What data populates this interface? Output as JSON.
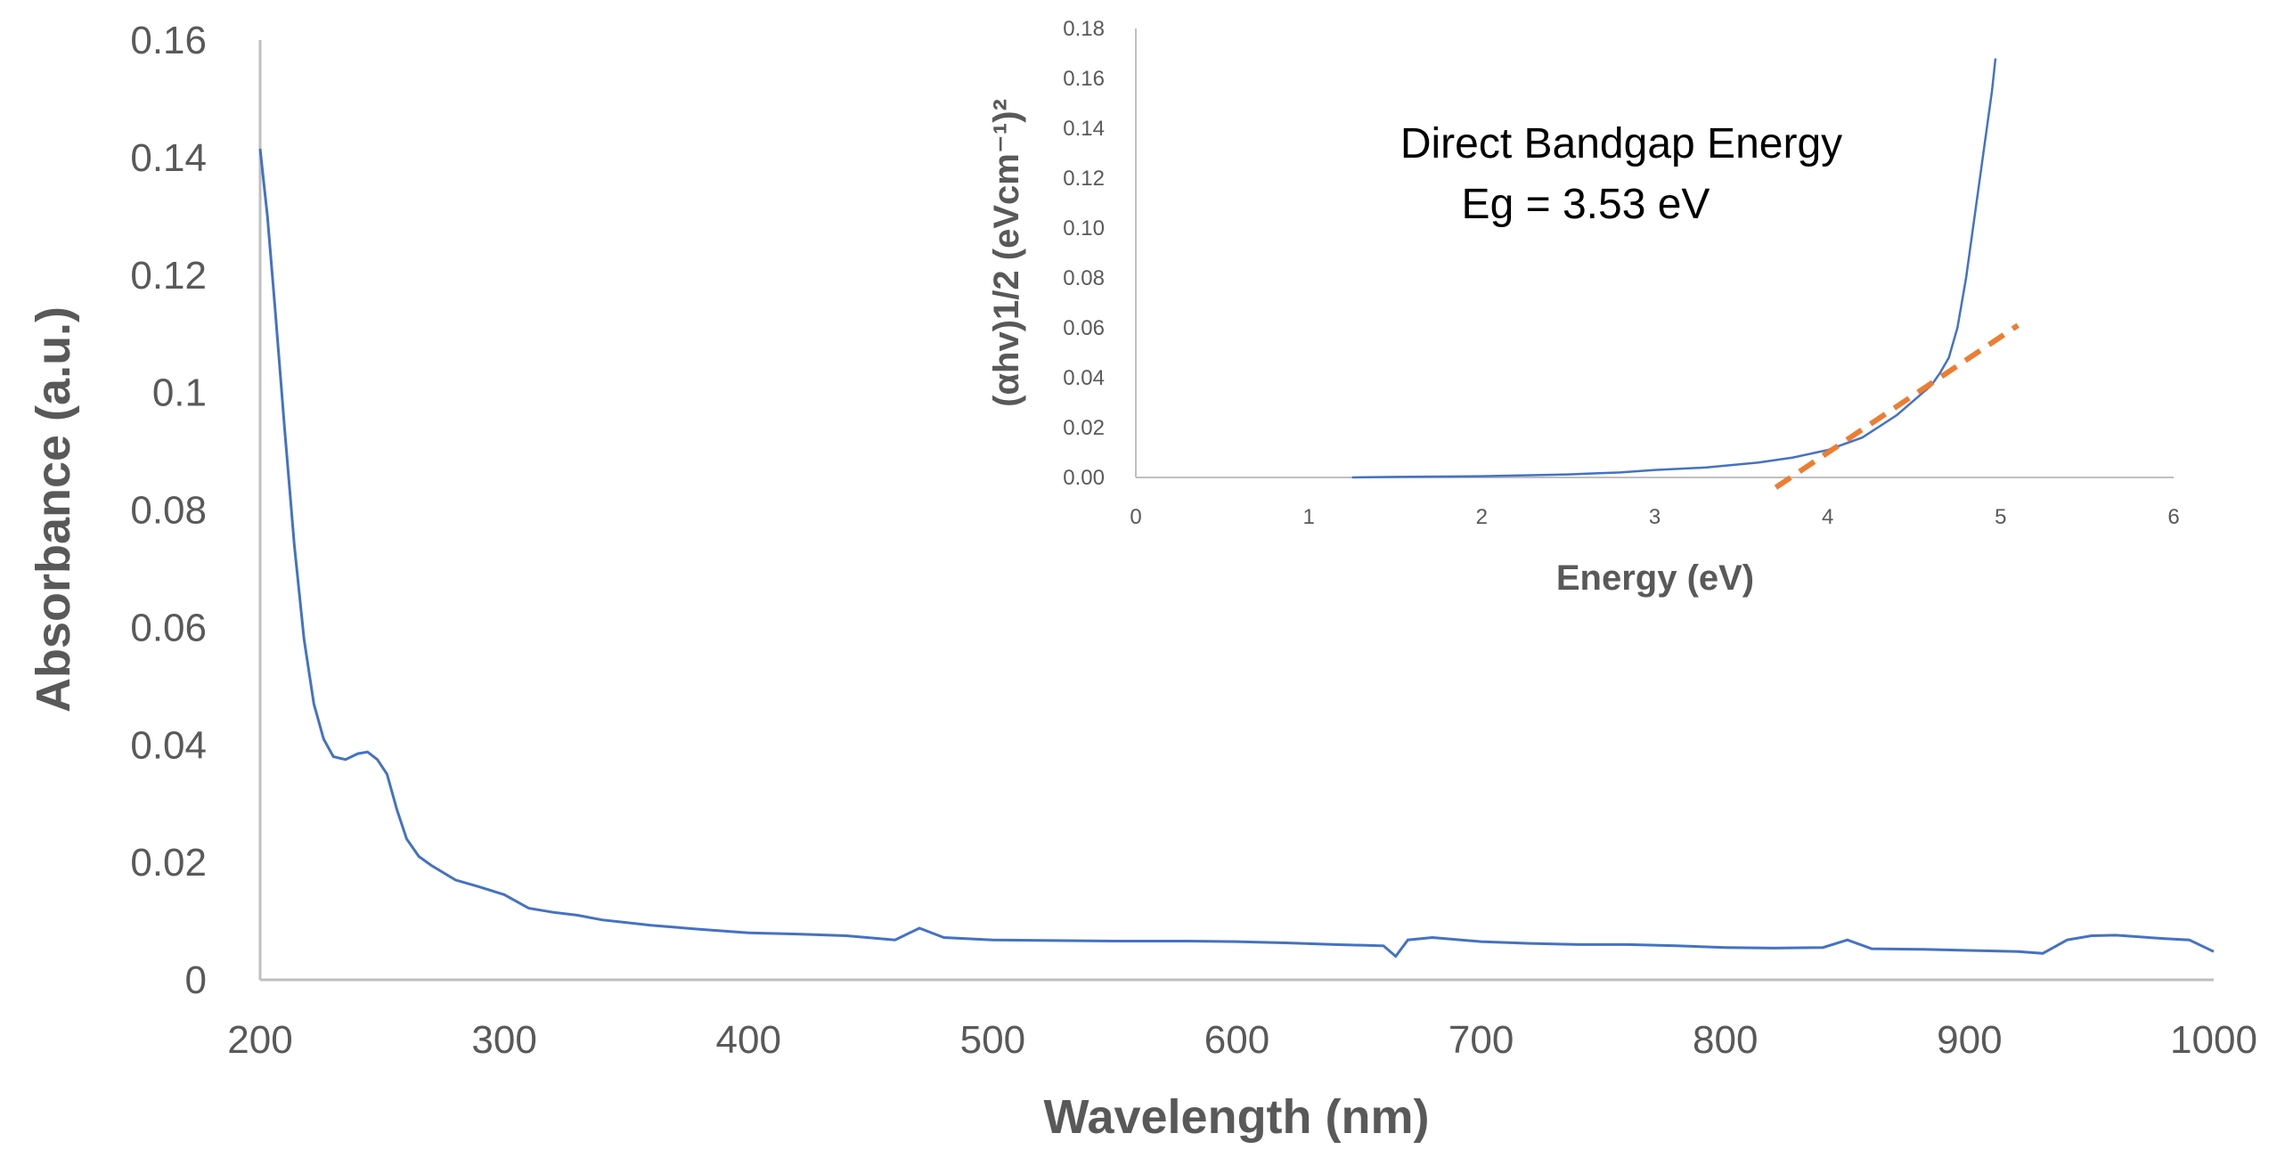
{
  "colors": {
    "series": "#4472C4",
    "fit": "#ED7D31",
    "axis": "#BFBFBF",
    "text": "#595959"
  },
  "chart_data": [
    {
      "type": "line",
      "title": "",
      "xlabel": "Wavelength (nm)",
      "ylabel": "Absorbance  (a.u.)",
      "xlim": [
        200,
        1000
      ],
      "ylim": [
        0,
        0.16
      ],
      "xticks": [
        "200",
        "300",
        "400",
        "500",
        "600",
        "700",
        "800",
        "900",
        "1000"
      ],
      "yticks": [
        "0",
        "0.02",
        "0.04",
        "0.06",
        "0.08",
        "0.1",
        "0.12",
        "0.14",
        "0.16"
      ],
      "grid": false,
      "series": [
        {
          "name": "Absorbance",
          "x": [
            200,
            203,
            206,
            210,
            214,
            218,
            222,
            226,
            230,
            235,
            240,
            244,
            248,
            252,
            256,
            260,
            265,
            270,
            280,
            290,
            300,
            310,
            320,
            330,
            340,
            360,
            380,
            400,
            420,
            440,
            460,
            470,
            480,
            500,
            520,
            550,
            580,
            600,
            620,
            640,
            660,
            665,
            670,
            680,
            700,
            720,
            740,
            760,
            780,
            800,
            820,
            840,
            850,
            860,
            880,
            900,
            920,
            930,
            940,
            950,
            960,
            980,
            990,
            1000
          ],
          "y": [
            0.1415,
            0.13,
            0.115,
            0.094,
            0.074,
            0.058,
            0.047,
            0.041,
            0.038,
            0.0375,
            0.0385,
            0.0388,
            0.0375,
            0.035,
            0.029,
            0.024,
            0.021,
            0.0195,
            0.017,
            0.0158,
            0.0145,
            0.0122,
            0.0115,
            0.011,
            0.0102,
            0.0093,
            0.0086,
            0.008,
            0.0078,
            0.0075,
            0.0068,
            0.0088,
            0.0072,
            0.0068,
            0.0067,
            0.0066,
            0.0066,
            0.0065,
            0.0063,
            0.006,
            0.0058,
            0.004,
            0.0068,
            0.0072,
            0.0065,
            0.0062,
            0.006,
            0.006,
            0.0058,
            0.0055,
            0.0054,
            0.0055,
            0.0068,
            0.0053,
            0.0052,
            0.005,
            0.0048,
            0.0045,
            0.0068,
            0.0075,
            0.0076,
            0.007,
            0.0068,
            0.0048
          ]
        }
      ]
    },
    {
      "type": "line",
      "title": "",
      "xlabel": "Energy (eV)",
      "ylabel": "(αhv)1/2 (eVcm⁻¹)²",
      "xlim": [
        0,
        6
      ],
      "ylim": [
        0,
        0.18
      ],
      "xticks": [
        "0",
        "1",
        "2",
        "3",
        "4",
        "5",
        "6"
      ],
      "yticks": [
        "0.00",
        "0.02",
        "0.04",
        "0.06",
        "0.08",
        "0.10",
        "0.12",
        "0.14",
        "0.16",
        "0.18"
      ],
      "grid": false,
      "annotations": [
        "Direct Bandgap Energy",
        "Eg = 3.53 eV"
      ],
      "series": [
        {
          "name": "(αhv)^1/2",
          "x": [
            1.25,
            1.5,
            2.0,
            2.5,
            2.8,
            3.0,
            3.3,
            3.6,
            3.8,
            4.0,
            4.2,
            4.4,
            4.5,
            4.6,
            4.65,
            4.7,
            4.75,
            4.8,
            4.85,
            4.9,
            4.95,
            4.97
          ],
          "y": [
            0.0,
            0.0002,
            0.0005,
            0.0012,
            0.002,
            0.003,
            0.004,
            0.006,
            0.008,
            0.011,
            0.016,
            0.025,
            0.031,
            0.037,
            0.042,
            0.048,
            0.06,
            0.08,
            0.105,
            0.13,
            0.155,
            0.168
          ]
        },
        {
          "name": "Linear fit",
          "style": "dashed",
          "x": [
            3.7,
            5.1
          ],
          "y": [
            -0.004,
            0.061
          ]
        }
      ]
    }
  ]
}
